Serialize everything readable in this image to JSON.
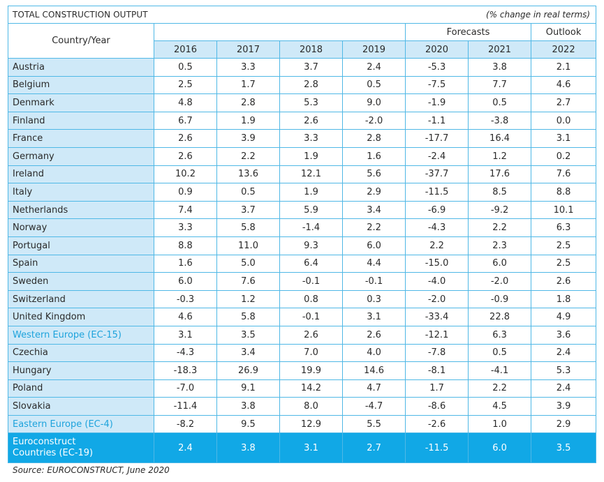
{
  "title": "TOTAL CONSTRUCTION OUTPUT",
  "unit_note": "(% change in real terms)",
  "header": {
    "country_year": "Country/Year",
    "forecasts": "Forecasts",
    "outlook": "Outlook",
    "years": [
      "2016",
      "2017",
      "2018",
      "2019",
      "2020",
      "2021",
      "2022"
    ]
  },
  "rows": [
    {
      "name": "Austria",
      "values": [
        "0.5",
        "3.3",
        "3.7",
        "2.4",
        "-5.3",
        "3.8",
        "2.1"
      ]
    },
    {
      "name": "Belgium",
      "values": [
        "2.5",
        "1.7",
        "2.8",
        "0.5",
        "-7.5",
        "7.7",
        "4.6"
      ]
    },
    {
      "name": "Denmark",
      "values": [
        "4.8",
        "2.8",
        "5.3",
        "9.0",
        "-1.9",
        "0.5",
        "2.7"
      ]
    },
    {
      "name": "Finland",
      "values": [
        "6.7",
        "1.9",
        "2.6",
        "-2.0",
        "-1.1",
        "-3.8",
        "0.0"
      ]
    },
    {
      "name": "France",
      "values": [
        "2.6",
        "3.9",
        "3.3",
        "2.8",
        "-17.7",
        "16.4",
        "3.1"
      ]
    },
    {
      "name": "Germany",
      "values": [
        "2.6",
        "2.2",
        "1.9",
        "1.6",
        "-2.4",
        "1.2",
        "0.2"
      ]
    },
    {
      "name": "Ireland",
      "values": [
        "10.2",
        "13.6",
        "12.1",
        "5.6",
        "-37.7",
        "17.6",
        "7.6"
      ]
    },
    {
      "name": "Italy",
      "values": [
        "0.9",
        "0.5",
        "1.9",
        "2.9",
        "-11.5",
        "8.5",
        "8.8"
      ]
    },
    {
      "name": "Netherlands",
      "values": [
        "7.4",
        "3.7",
        "5.9",
        "3.4",
        "-6.9",
        "-9.2",
        "10.1"
      ]
    },
    {
      "name": "Norway",
      "values": [
        "3.3",
        "5.8",
        "-1.4",
        "2.2",
        "-4.3",
        "2.2",
        "6.3"
      ]
    },
    {
      "name": "Portugal",
      "values": [
        "8.8",
        "11.0",
        "9.3",
        "6.0",
        "2.2",
        "2.3",
        "2.5"
      ]
    },
    {
      "name": "Spain",
      "values": [
        "1.6",
        "5.0",
        "6.4",
        "4.4",
        "-15.0",
        "6.0",
        "2.5"
      ]
    },
    {
      "name": "Sweden",
      "values": [
        "6.0",
        "7.6",
        "-0.1",
        "-0.1",
        "-4.0",
        "-2.0",
        "2.6"
      ]
    },
    {
      "name": "Switzerland",
      "values": [
        "-0.3",
        "1.2",
        "0.8",
        "0.3",
        "-2.0",
        "-0.9",
        "1.8"
      ]
    },
    {
      "name": "United Kingdom",
      "values": [
        "4.6",
        "5.8",
        "-0.1",
        "3.1",
        "-33.4",
        "22.8",
        "4.9"
      ]
    },
    {
      "name": "Western Europe (EC-15)",
      "values": [
        "3.1",
        "3.5",
        "2.6",
        "2.6",
        "-12.1",
        "6.3",
        "3.6"
      ],
      "subtotal": true
    },
    {
      "name": "Czechia",
      "values": [
        "-4.3",
        "3.4",
        "7.0",
        "4.0",
        "-7.8",
        "0.5",
        "2.4"
      ]
    },
    {
      "name": "Hungary",
      "values": [
        "-18.3",
        "26.9",
        "19.9",
        "14.6",
        "-8.1",
        "-4.1",
        "5.3"
      ]
    },
    {
      "name": "Poland",
      "values": [
        "-7.0",
        "9.1",
        "14.2",
        "4.7",
        "1.7",
        "2.2",
        "2.4"
      ]
    },
    {
      "name": "Slovakia",
      "values": [
        "-11.4",
        "3.8",
        "8.0",
        "-4.7",
        "-8.6",
        "4.5",
        "3.9"
      ]
    },
    {
      "name": "Eastern Europe (EC-4)",
      "values": [
        "-8.2",
        "9.5",
        "12.9",
        "5.5",
        "-2.6",
        "1.0",
        "2.9"
      ],
      "subtotal": true
    }
  ],
  "total": {
    "name_line1": "Euroconstruct",
    "name_line2": "Countries (EC-19)",
    "values": [
      "2.4",
      "3.8",
      "3.1",
      "2.7",
      "-11.5",
      "6.0",
      "3.5"
    ]
  },
  "source": "Source: EUROCONSTRUCT, June 2020",
  "colors": {
    "border": "#4fb8e6",
    "light": "#cfe9f8",
    "accent": "#11a8e6",
    "subtotal_text": "#1ea3dc"
  }
}
